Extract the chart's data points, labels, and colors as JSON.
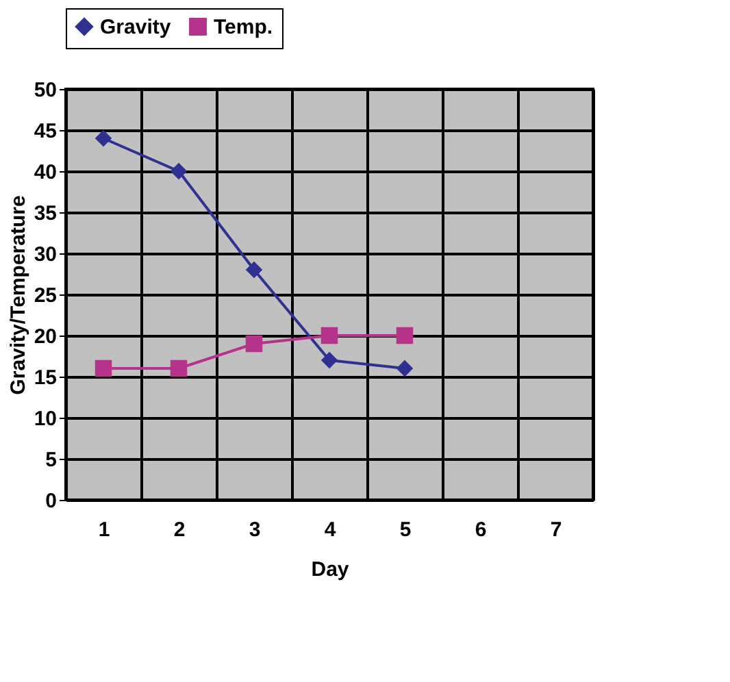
{
  "chart_data": {
    "type": "line",
    "xlabel": "Day",
    "ylabel": "Gravity/Temperature",
    "categories": [
      "1",
      "2",
      "3",
      "4",
      "5",
      "6",
      "7"
    ],
    "series": [
      {
        "name": "Gravity",
        "color": "#2e3192",
        "marker": "diamond",
        "values": [
          44,
          40,
          28,
          17,
          16,
          null,
          null
        ]
      },
      {
        "name": "Temp.",
        "color": "#b5338a",
        "marker": "square",
        "values": [
          16,
          16,
          19,
          20,
          20,
          null,
          null
        ]
      }
    ],
    "ylim": [
      0,
      50
    ],
    "yticks": [
      0,
      5,
      10,
      15,
      20,
      25,
      30,
      35,
      40,
      45,
      50
    ],
    "grid": true,
    "legend": "top"
  }
}
